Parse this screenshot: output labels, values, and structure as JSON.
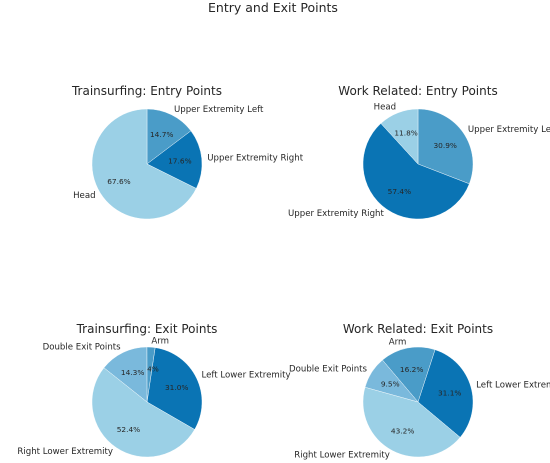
{
  "figure": {
    "title": "Entry and Exit Points"
  },
  "colors": {
    "wedge_stroke": "#ffffff",
    "text": "#262626"
  },
  "chart_data": [
    {
      "type": "pie",
      "title": "Trainsurfing: Entry Points",
      "start_angle_deg": 90,
      "direction": "clockwise",
      "slices": [
        {
          "label": "Upper Extremity Left",
          "value": 14.7,
          "pct_label": "14.7%",
          "color": "#4a9cc8"
        },
        {
          "label": "Upper Extremity Right",
          "value": 17.6,
          "pct_label": "17.6%",
          "color": "#0a74b4"
        },
        {
          "label": "Head",
          "value": 67.6,
          "pct_label": "67.6%",
          "color": "#9bd0e6"
        }
      ]
    },
    {
      "type": "pie",
      "title": "Work Related: Entry Points",
      "start_angle_deg": 90,
      "direction": "clockwise",
      "slices": [
        {
          "label": "Upper Extremity Left",
          "value": 30.9,
          "pct_label": "30.9%",
          "color": "#4a9cc8"
        },
        {
          "label": "Upper Extremity Right",
          "value": 57.4,
          "pct_label": "57.4%",
          "color": "#0a74b4"
        },
        {
          "label": "Head",
          "value": 11.8,
          "pct_label": "11.8%",
          "color": "#9bd0e6"
        }
      ]
    },
    {
      "type": "pie",
      "title": "Trainsurfing: Exit Points",
      "start_angle_deg": -30,
      "direction": "counterclockwise",
      "slices": [
        {
          "label": "Left Lower Extremity",
          "value": 31.0,
          "pct_label": "31.0%",
          "color": "#0a74b4"
        },
        {
          "label": "Arm",
          "value": 2.4,
          "pct_label": "2.4%",
          "color": "#4a9cc8"
        },
        {
          "label": "Double Exit Points",
          "value": 14.3,
          "pct_label": "14.3%",
          "color": "#7ab9dc"
        },
        {
          "label": "Right Lower Extremity",
          "value": 52.4,
          "pct_label": "52.4%",
          "color": "#9bd0e6"
        }
      ]
    },
    {
      "type": "pie",
      "title": "Work Related: Exit Points",
      "start_angle_deg": -40,
      "direction": "counterclockwise",
      "slices": [
        {
          "label": "Left Lower Extremity",
          "value": 31.1,
          "pct_label": "31.1%",
          "color": "#0a74b4"
        },
        {
          "label": "Arm",
          "value": 16.2,
          "pct_label": "16.2%",
          "color": "#4a9cc8"
        },
        {
          "label": "Double Exit Points",
          "value": 9.5,
          "pct_label": "9.5%",
          "color": "#7ab9dc"
        },
        {
          "label": "Right Lower Extremity",
          "value": 43.2,
          "pct_label": "43.2%",
          "color": "#9bd0e6"
        }
      ]
    }
  ]
}
